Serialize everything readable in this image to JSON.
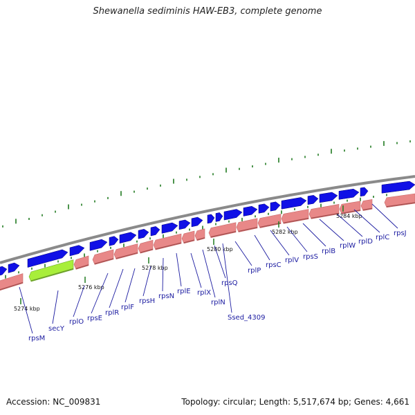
{
  "title": "Shewanella sediminis HAW-EB3, complete genome",
  "footer": {
    "accession": "Accession: NC_009831",
    "summary": "Topology: circular; Length: 5,517,674 bp; Genes: 4,661"
  },
  "colors": {
    "forward_gene": "#1010e6",
    "reverse_gene": "#e88888",
    "highlight_gene": "#a8ee3a",
    "backbone": "#8a8a8a",
    "gc_tick": "#1f7a1f",
    "label": "#1a1aa0"
  },
  "kbp_ticks": [
    {
      "label": "5274 kbp"
    },
    {
      "label": "5276 kbp"
    },
    {
      "label": "5278 kbp"
    },
    {
      "label": "5280 kbp"
    },
    {
      "label": "5282 kbp"
    },
    {
      "label": "5284 kbp"
    }
  ],
  "genes": [
    {
      "name": "rpsM"
    },
    {
      "name": "secY"
    },
    {
      "name": "rplO"
    },
    {
      "name": "rpsE"
    },
    {
      "name": "rplR"
    },
    {
      "name": "rplF"
    },
    {
      "name": "rpsH"
    },
    {
      "name": "rpsN"
    },
    {
      "name": "rplE"
    },
    {
      "name": "rplX"
    },
    {
      "name": "rplN"
    },
    {
      "name": "rpsQ"
    },
    {
      "name": "Ssed_4309"
    },
    {
      "name": "rplP"
    },
    {
      "name": "rpsC"
    },
    {
      "name": "rplV"
    },
    {
      "name": "rpsS"
    },
    {
      "name": "rplB"
    },
    {
      "name": "rplW"
    },
    {
      "name": "rplD"
    },
    {
      "name": "rplC"
    },
    {
      "name": "rpsJ"
    }
  ]
}
